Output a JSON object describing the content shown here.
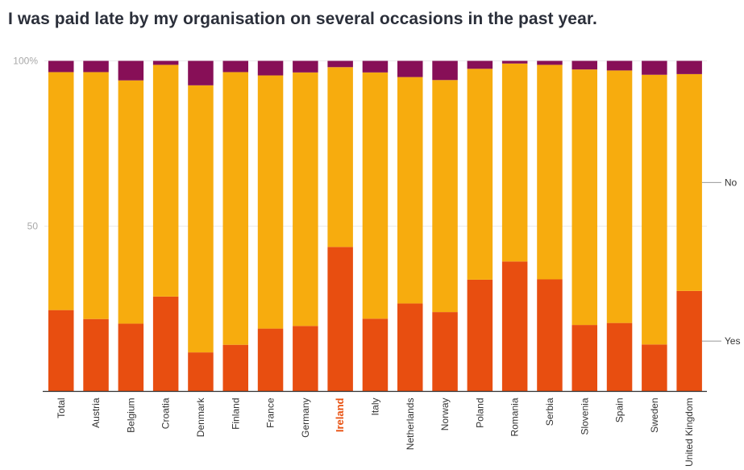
{
  "title": "I was paid late by my organisation on several occasions in the past year.",
  "chart_data": {
    "type": "bar",
    "stacked": true,
    "percent_stacked": true,
    "title": "I was paid late by my organisation on several occasions in the past year.",
    "xlabel": "",
    "ylabel": "",
    "ylim": [
      0,
      100
    ],
    "yticks": [
      {
        "value": 100,
        "label": "100%"
      },
      {
        "value": 50,
        "label": "50"
      }
    ],
    "grid": true,
    "legend": "right (inline labels)",
    "highlight_category": "Ireland",
    "categories": [
      "Total",
      "Austria",
      "Belgium",
      "Croatia",
      "Denmark",
      "Finland",
      "France",
      "Germany",
      "Ireland",
      "Italy",
      "Netherlands",
      "Norway",
      "Poland",
      "Romania",
      "Serbia",
      "Slovenia",
      "Spain",
      "Sweden",
      "United Kingdom"
    ],
    "series": [
      {
        "name": "Yes",
        "color": "#e84e10",
        "values": [
          24.6,
          21.9,
          20.5,
          28.7,
          11.8,
          14.1,
          19.0,
          19.8,
          43.7,
          22.0,
          26.6,
          24.0,
          33.8,
          39.3,
          33.9,
          20.1,
          20.7,
          14.2,
          30.4
        ]
      },
      {
        "name": "No",
        "color": "#f7ac0e",
        "values": [
          72.0,
          74.7,
          73.6,
          70.1,
          80.8,
          82.5,
          76.6,
          76.7,
          54.4,
          74.5,
          68.5,
          70.2,
          63.8,
          59.9,
          64.9,
          77.3,
          76.4,
          81.6,
          65.6
        ]
      },
      {
        "name": "",
        "color": "#870f57",
        "values": [
          3.4,
          3.4,
          5.9,
          1.2,
          7.4,
          3.4,
          4.4,
          3.5,
          1.9,
          3.5,
          4.9,
          5.8,
          2.4,
          0.8,
          1.2,
          2.6,
          2.9,
          4.2,
          4.0
        ]
      }
    ],
    "legend_entries": [
      {
        "label": "No",
        "series": "No"
      },
      {
        "label": "Yes",
        "series": "Yes"
      }
    ],
    "highlight_color": "#e8500f"
  }
}
